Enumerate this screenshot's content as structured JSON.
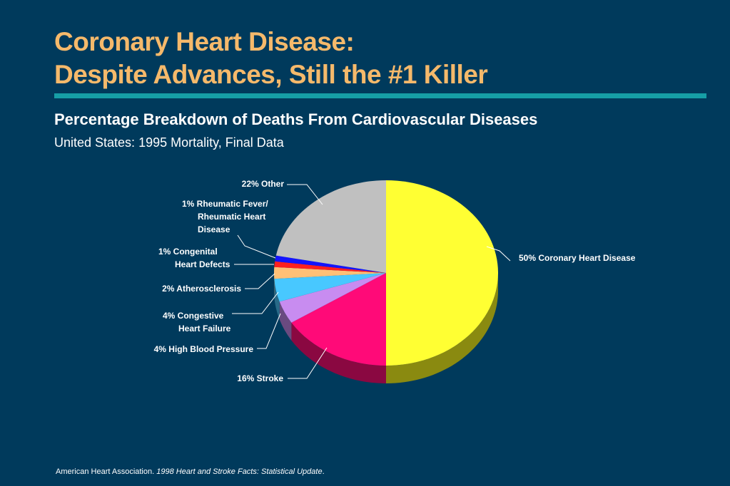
{
  "slide": {
    "title_line1": "Coronary Heart Disease:",
    "title_line2": "Despite Advances, Still the #1 Killer",
    "footer_org": "American Heart Association.",
    "footer_pub": "1998 Heart and Stroke Facts: Statistical Update",
    "footer_end": "."
  },
  "chart_data": {
    "type": "pie",
    "title": "Percentage Breakdown of Deaths From Cardiovascular Diseases",
    "subtitle": "United States: 1995 Mortality, Final Data",
    "slices": [
      {
        "label": "Coronary Heart Disease",
        "value": 50,
        "color": "#ffff33",
        "side_color": "#8a8a10",
        "label_lines": [
          "50% Coronary Heart Disease"
        ]
      },
      {
        "label": "Stroke",
        "value": 16,
        "color": "#ff0a78",
        "side_color": "#8a0841",
        "label_lines": [
          "16% Stroke"
        ]
      },
      {
        "label": "High Blood Pressure",
        "value": 4,
        "color": "#c88cf0",
        "side_color": "#6a4a80",
        "label_lines": [
          "4% High Blood Pressure"
        ]
      },
      {
        "label": "Congestive Heart Failure",
        "value": 4,
        "color": "#48c8ff",
        "side_color": "#286a88",
        "label_lines": [
          "4%  Congestive",
          "Heart Failure"
        ]
      },
      {
        "label": "Atherosclerosis",
        "value": 2,
        "color": "#ffc076",
        "side_color": "#886640",
        "label_lines": [
          "2% Atherosclerosis"
        ]
      },
      {
        "label": "Congenital Heart Defects",
        "value": 1,
        "color": "#ff2020",
        "side_color": "#881010",
        "label_lines": [
          "1% Congenital",
          "Heart Defects"
        ]
      },
      {
        "label": "Rheumatic Fever/Rheumatic Heart Disease",
        "value": 1,
        "color": "#1414ff",
        "side_color": "#0a0a88",
        "label_lines": [
          "1%  Rheumatic Fever/",
          "Rheumatic Heart",
          "Disease"
        ]
      },
      {
        "label": "Other",
        "value": 22,
        "color": "#c0c0c0",
        "side_color": "#707070",
        "label_lines": [
          "22% Other"
        ]
      }
    ]
  }
}
